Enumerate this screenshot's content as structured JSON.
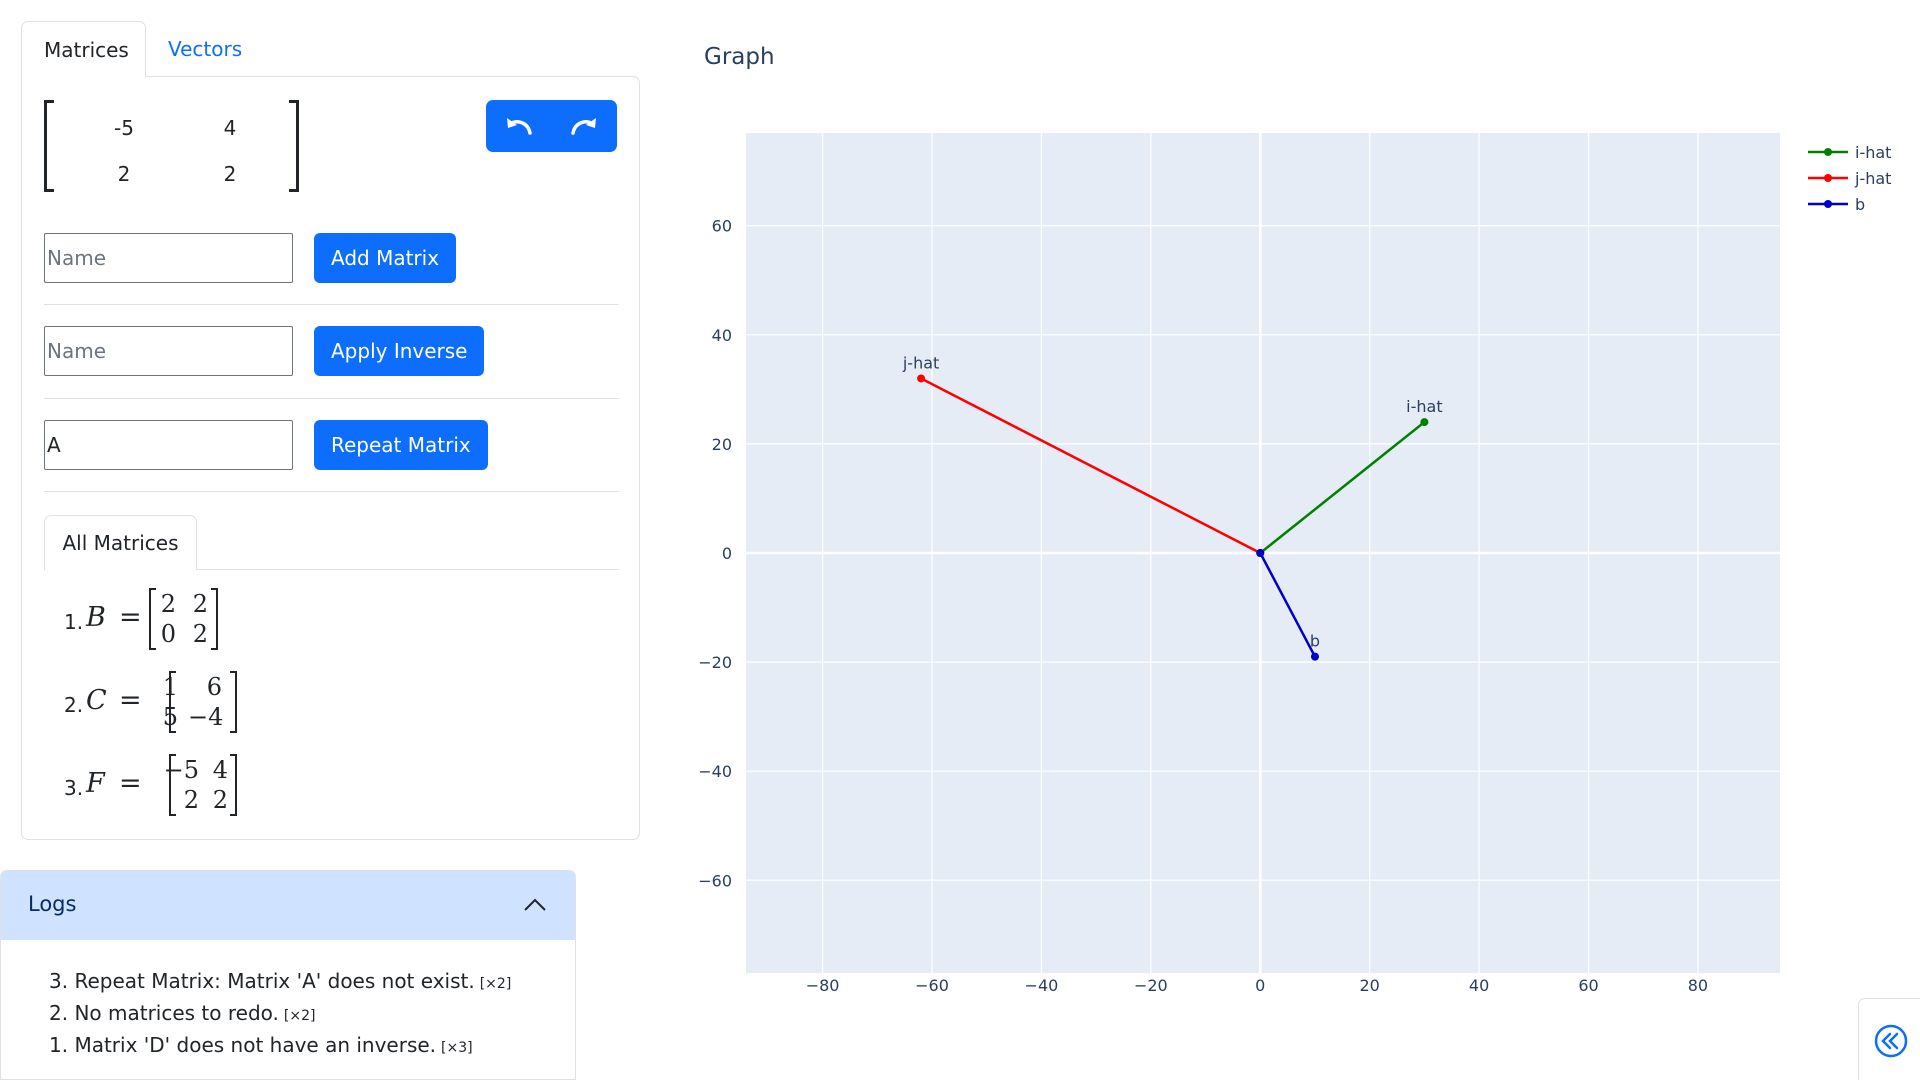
{
  "tabs": [
    {
      "label": "Matrices",
      "active": true
    },
    {
      "label": "Vectors",
      "active": false
    }
  ],
  "editor": {
    "cells": [
      [
        "-5",
        "4"
      ],
      [
        "2",
        "2"
      ]
    ],
    "undo_icon": "undo-icon",
    "redo_icon": "redo-icon"
  },
  "forms": [
    {
      "placeholder": "Name",
      "value": "",
      "button": "Add Matrix"
    },
    {
      "placeholder": "Name",
      "value": "",
      "button": "Apply Inverse"
    },
    {
      "placeholder": "Name",
      "value": "A",
      "button": "Repeat Matrix"
    }
  ],
  "all_matrices": {
    "tab_label": "All Matrices",
    "items": [
      {
        "num": "1.",
        "name": "B",
        "eq": "=",
        "cells": [
          [
            "2",
            "2"
          ],
          [
            "0",
            "2"
          ]
        ]
      },
      {
        "num": "2.",
        "name": "C",
        "eq": "=",
        "cells": [
          [
            "1",
            "6"
          ],
          [
            "5",
            "−4"
          ]
        ]
      },
      {
        "num": "3.",
        "name": "F",
        "eq": "=",
        "cells": [
          [
            "−5",
            "4"
          ],
          [
            "2",
            "2"
          ]
        ]
      }
    ]
  },
  "logs": {
    "title": "Logs",
    "items": [
      {
        "text": "3. Repeat Matrix: Matrix 'A' does not exist.",
        "count": "[×2]"
      },
      {
        "text": "2. No matrices to redo.",
        "count": "[×2]"
      },
      {
        "text": "1. Matrix 'D' does not have an inverse.",
        "count": "[×3]"
      }
    ]
  },
  "graph": {
    "title": "Graph"
  },
  "chart_data": {
    "type": "line",
    "title": "Graph",
    "xlabel": "",
    "ylabel": "",
    "xlim": [
      -94,
      95
    ],
    "ylim": [
      -77,
      77
    ],
    "x_ticks": [
      -80,
      -60,
      -40,
      -20,
      0,
      20,
      40,
      60,
      80
    ],
    "y_ticks": [
      -60,
      -40,
      -20,
      0,
      20,
      40,
      60
    ],
    "grid": true,
    "legend": "top-right",
    "series": [
      {
        "name": "i-hat",
        "color": "#008000",
        "points": [
          [
            0,
            0
          ],
          [
            30,
            24
          ]
        ],
        "label": "i-hat"
      },
      {
        "name": "j-hat",
        "color": "#ff0000",
        "points": [
          [
            0,
            0
          ],
          [
            -62,
            32
          ]
        ],
        "label": "j-hat"
      },
      {
        "name": "b",
        "color": "#0000cd",
        "points": [
          [
            0,
            0
          ],
          [
            10,
            -19
          ]
        ],
        "label": "b"
      }
    ]
  }
}
